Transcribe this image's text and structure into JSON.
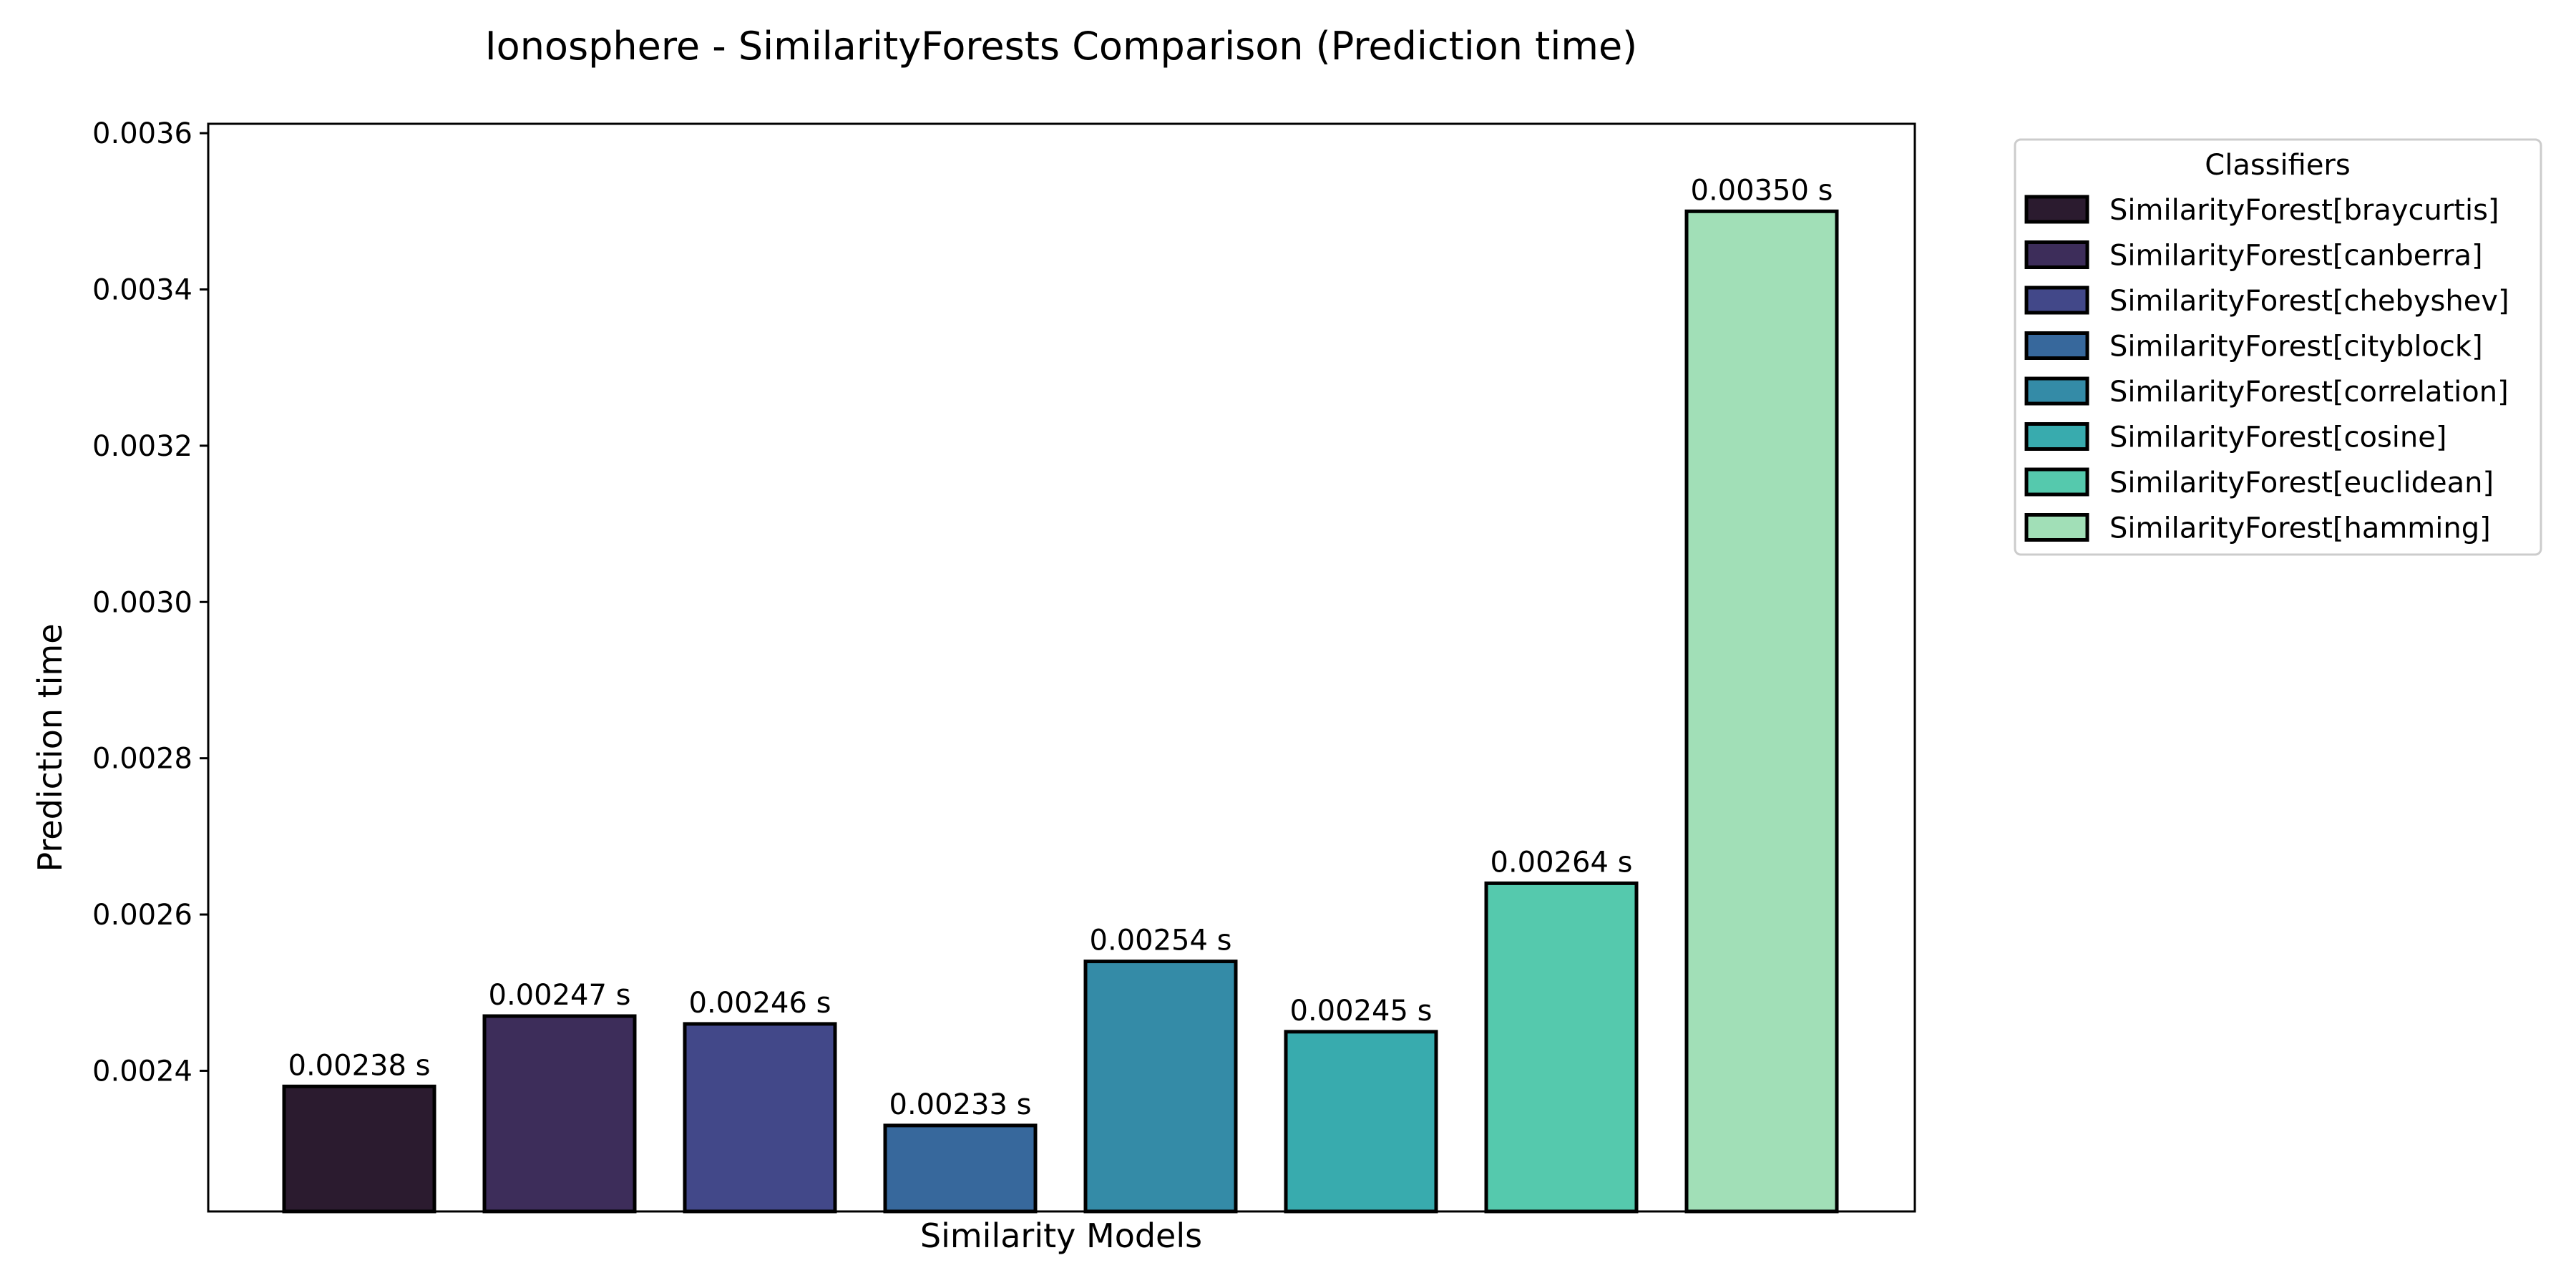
{
  "chart_data": {
    "type": "bar",
    "title": "Ionosphere - SimilarityForests Comparison (Prediction time)",
    "xlabel": "Similarity Models",
    "ylabel": "Prediction time",
    "ylim": [
      0.00222,
      0.003612
    ],
    "yticks": [
      "0.0024",
      "0.0026",
      "0.0028",
      "0.0030",
      "0.0032",
      "0.0034",
      "0.0036"
    ],
    "grid": false,
    "legend_title": "Classifiers",
    "legend_position": "outside-top-right",
    "bar_edge_color": "#000000",
    "series": [
      {
        "name": "SimilarityForest[braycurtis]",
        "value": 0.00238,
        "label": "0.00238 s",
        "color": "#2b1b2f"
      },
      {
        "name": "SimilarityForest[canberra]",
        "value": 0.00247,
        "label": "0.00247 s",
        "color": "#3d2d5a"
      },
      {
        "name": "SimilarityForest[chebyshev]",
        "value": 0.00246,
        "label": "0.00246 s",
        "color": "#424889"
      },
      {
        "name": "SimilarityForest[cityblock]",
        "value": 0.00233,
        "label": "0.00233 s",
        "color": "#37689c"
      },
      {
        "name": "SimilarityForest[correlation]",
        "value": 0.00254,
        "label": "0.00254 s",
        "color": "#348ba7"
      },
      {
        "name": "SimilarityForest[cosine]",
        "value": 0.00245,
        "label": "0.00245 s",
        "color": "#38abae"
      },
      {
        "name": "SimilarityForest[euclidean]",
        "value": 0.00264,
        "label": "0.00264 s",
        "color": "#55c9ad"
      },
      {
        "name": "SimilarityForest[hamming]",
        "value": 0.0035,
        "label": "0.00350 s",
        "color": "#a1dfb7"
      }
    ]
  }
}
